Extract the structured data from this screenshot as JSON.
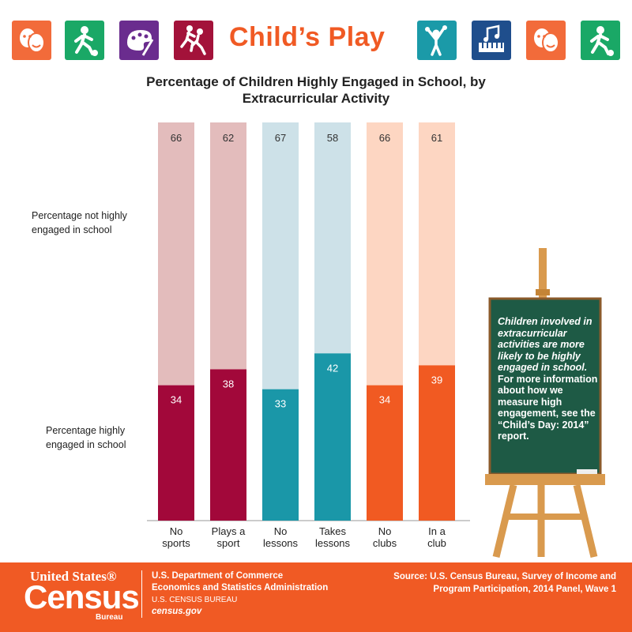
{
  "header": {
    "title": "Child’s Play",
    "icons": [
      "theater-masks-icon",
      "soccer-player-icon",
      "paint-palette-icon",
      "runners-icon",
      "theater-masks-icon",
      "soccer-player-icon",
      "cheerleader-icon",
      "piano-music-icon"
    ],
    "icon_colors": [
      "#f26b3a",
      "#1aa866",
      "#6a2c8e",
      "#a3123a",
      "#1b9aa8",
      "#1f4e8c",
      "#f26b3a",
      "#1aa866"
    ]
  },
  "chart_data": {
    "type": "bar",
    "title": "Percentage of Children Highly Engaged in School, by Extracurricular Activity",
    "categories": [
      "No sports",
      "Plays a sport",
      "No lessons",
      "Takes lessons",
      "No clubs",
      "In a club"
    ],
    "category_lines": [
      [
        "No",
        "sports"
      ],
      [
        "Plays a",
        "sport"
      ],
      [
        "No",
        "lessons"
      ],
      [
        "Takes",
        "lessons"
      ],
      [
        "No",
        "clubs"
      ],
      [
        "In a",
        "club"
      ]
    ],
    "series": [
      {
        "name": "Percentage highly engaged in school",
        "values": [
          34,
          38,
          33,
          42,
          34,
          39
        ]
      },
      {
        "name": "Percentage not highly engaged in school",
        "values": [
          66,
          62,
          67,
          58,
          66,
          61
        ]
      }
    ],
    "stacked": true,
    "ylim": [
      0,
      100
    ],
    "colors_engaged": [
      "#a2083a",
      "#a2083a",
      "#1a97a8",
      "#1a97a8",
      "#f15a22",
      "#f15a22"
    ],
    "colors_not_engaged": [
      "#e3bcbc",
      "#e3bcbc",
      "#cde1e8",
      "#cde1e8",
      "#fdd6c2",
      "#fdd6c2"
    ]
  },
  "labels": {
    "not_engaged": "Percentage not highly engaged in school",
    "engaged": "Percentage highly engaged in school"
  },
  "board": {
    "italic_text": "Children involved in extracurricular activities are more likely to be highly engaged in school.",
    "text": "For more information about how we measure high engagement, see the “Child’s Day: 2014” report.",
    "color": "#1e5a45"
  },
  "footer": {
    "logo_top": "United States®",
    "logo_main": "Census",
    "logo_bottom": "Bureau",
    "dept_line1": "U.S. Department of Commerce",
    "dept_line2": "Economics and Statistics Administration",
    "dept_line3": "U.S. CENSUS BUREAU",
    "dept_line4": "census.gov",
    "source": "Source: U.S. Census Bureau, Survey of Income and Program Participation, 2014 Panel, Wave 1",
    "color": "#f05a24"
  }
}
